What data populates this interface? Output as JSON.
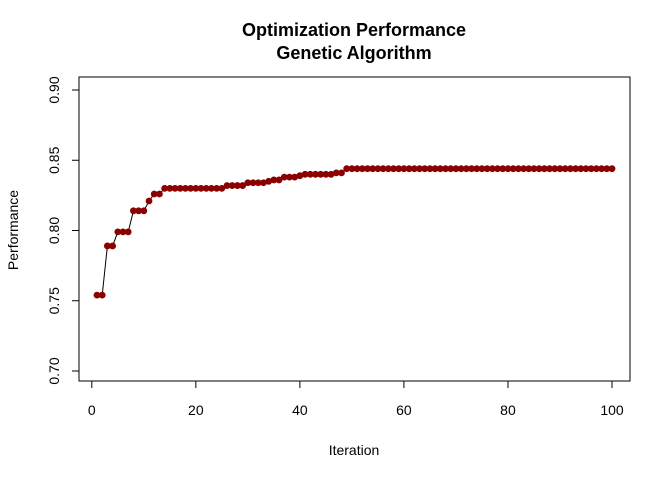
{
  "chart_data": {
    "type": "line",
    "title": "Optimization Performance",
    "subtitle": "Genetic Algorithm",
    "xlabel": "Iteration",
    "ylabel": "Performance",
    "xlim": [
      1,
      100
    ],
    "ylim": [
      0.7,
      0.9
    ],
    "xticks": [
      0,
      20,
      40,
      60,
      80,
      100
    ],
    "yticks": [
      0.7,
      0.75,
      0.8,
      0.85,
      0.9
    ],
    "xtick_labels": [
      "0",
      "20",
      "40",
      "60",
      "80",
      "100"
    ],
    "ytick_labels": [
      "0.70",
      "0.75",
      "0.80",
      "0.85",
      "0.90"
    ],
    "grid": false,
    "legend": "none",
    "series": [
      {
        "color": "#8b0000",
        "line_color": "#000000",
        "marker": "filled-circle",
        "x": [
          1,
          2,
          3,
          4,
          5,
          6,
          7,
          8,
          9,
          10,
          11,
          12,
          13,
          14,
          15,
          16,
          17,
          18,
          19,
          20,
          21,
          22,
          23,
          24,
          25,
          26,
          27,
          28,
          29,
          30,
          31,
          32,
          33,
          34,
          35,
          36,
          37,
          38,
          39,
          40,
          41,
          42,
          43,
          44,
          45,
          46,
          47,
          48,
          49,
          50,
          51,
          52,
          53,
          54,
          55,
          56,
          57,
          58,
          59,
          60,
          61,
          62,
          63,
          64,
          65,
          66,
          67,
          68,
          69,
          70,
          71,
          72,
          73,
          74,
          75,
          76,
          77,
          78,
          79,
          80,
          81,
          82,
          83,
          84,
          85,
          86,
          87,
          88,
          89,
          90,
          91,
          92,
          93,
          94,
          95,
          96,
          97,
          98,
          99,
          100
        ],
        "y": [
          0.754,
          0.754,
          0.789,
          0.789,
          0.799,
          0.799,
          0.799,
          0.814,
          0.814,
          0.814,
          0.821,
          0.826,
          0.826,
          0.83,
          0.83,
          0.83,
          0.83,
          0.83,
          0.83,
          0.83,
          0.83,
          0.83,
          0.83,
          0.83,
          0.83,
          0.832,
          0.832,
          0.832,
          0.832,
          0.834,
          0.834,
          0.834,
          0.834,
          0.835,
          0.836,
          0.836,
          0.838,
          0.838,
          0.838,
          0.839,
          0.84,
          0.84,
          0.84,
          0.84,
          0.84,
          0.84,
          0.841,
          0.841,
          0.844,
          0.844,
          0.844,
          0.844,
          0.844,
          0.844,
          0.844,
          0.844,
          0.844,
          0.844,
          0.844,
          0.844,
          0.844,
          0.844,
          0.844,
          0.844,
          0.844,
          0.844,
          0.844,
          0.844,
          0.844,
          0.844,
          0.844,
          0.844,
          0.844,
          0.844,
          0.844,
          0.844,
          0.844,
          0.844,
          0.844,
          0.844,
          0.844,
          0.844,
          0.844,
          0.844,
          0.844,
          0.844,
          0.844,
          0.844,
          0.844,
          0.844,
          0.844,
          0.844,
          0.844,
          0.844,
          0.844,
          0.844,
          0.844,
          0.844,
          0.844,
          0.844
        ]
      }
    ]
  }
}
